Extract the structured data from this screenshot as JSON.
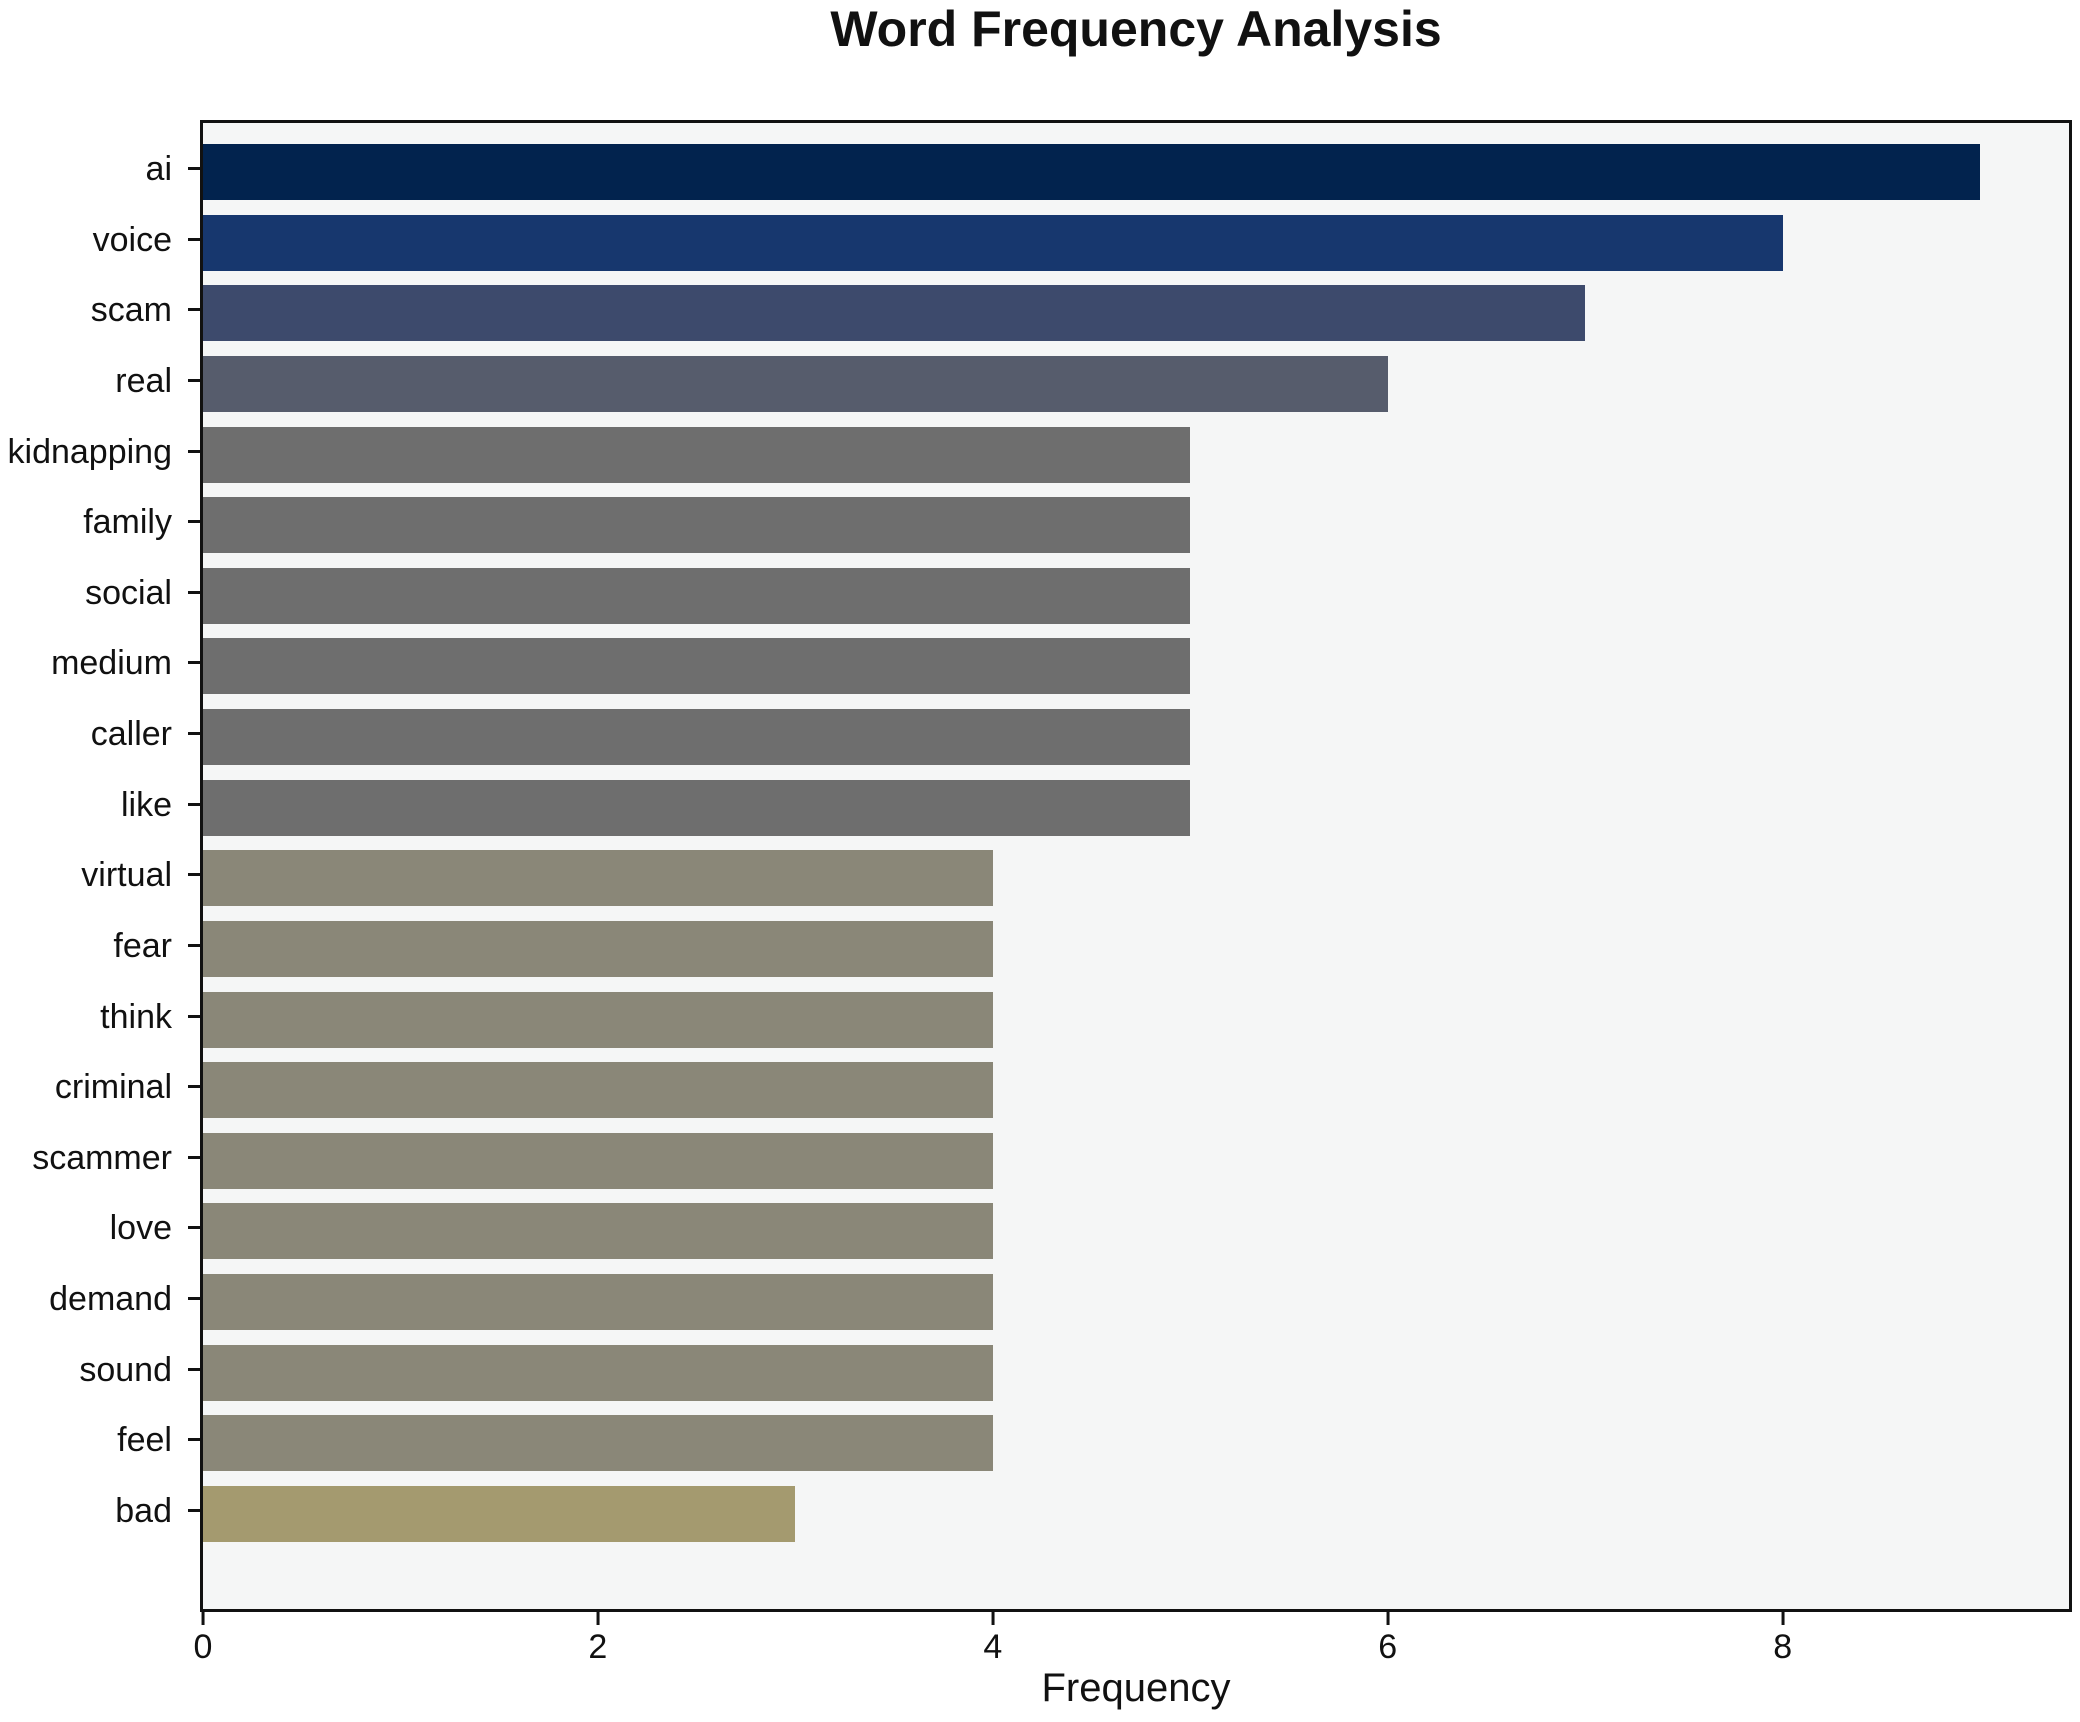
{
  "title": "Word Frequency Analysis",
  "chart_data": {
    "type": "bar",
    "orientation": "horizontal",
    "title": "Word Frequency Analysis",
    "xlabel": "Frequency",
    "ylabel": "",
    "categories": [
      "ai",
      "voice",
      "scam",
      "real",
      "kidnapping",
      "family",
      "social",
      "medium",
      "caller",
      "like",
      "virtual",
      "fear",
      "think",
      "criminal",
      "scammer",
      "love",
      "demand",
      "sound",
      "feel",
      "bad"
    ],
    "values": [
      9,
      8,
      7,
      6,
      5,
      5,
      5,
      5,
      5,
      5,
      4,
      4,
      4,
      4,
      4,
      4,
      4,
      4,
      4,
      3
    ],
    "bar_colors": [
      "#02234e",
      "#17376e",
      "#3d4a6c",
      "#565c6c",
      "#6e6e6e",
      "#6e6e6e",
      "#6e6e6e",
      "#6e6e6e",
      "#6e6e6e",
      "#6e6e6e",
      "#8a8778",
      "#8a8778",
      "#8a8778",
      "#8a8778",
      "#8a8778",
      "#8a8778",
      "#8a8778",
      "#8a8778",
      "#8a8778",
      "#a49a6f"
    ],
    "xlim": [
      0,
      9.45
    ],
    "xticks": [
      0,
      2,
      4,
      6,
      8
    ],
    "grid": false,
    "legend": null,
    "plot_background": "#f5f6f6",
    "figure_background": "#ffffff",
    "spine_color": "#111111"
  }
}
